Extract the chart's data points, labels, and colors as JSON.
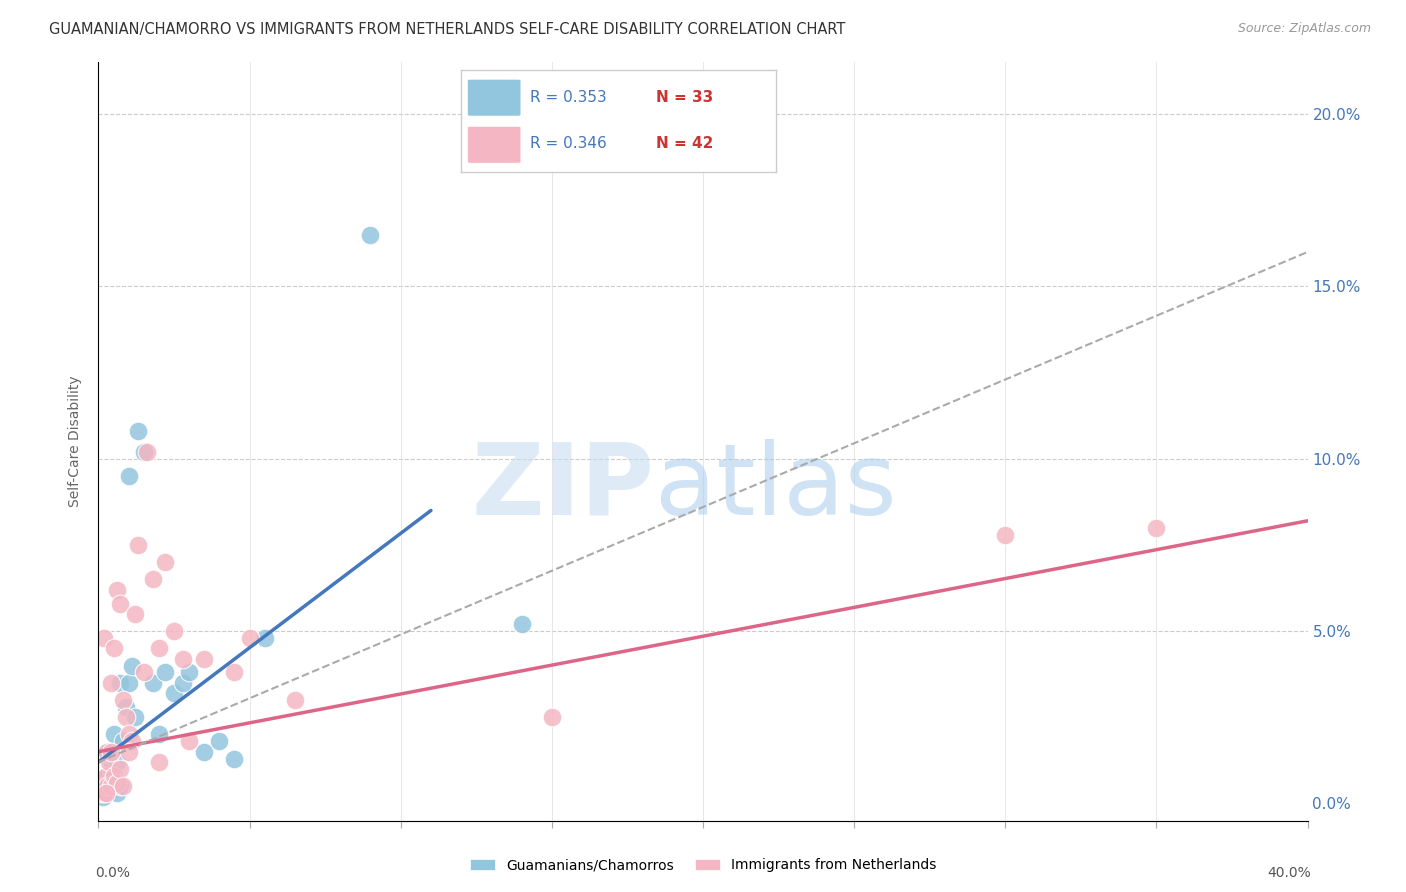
{
  "title": "GUAMANIAN/CHAMORRO VS IMMIGRANTS FROM NETHERLANDS SELF-CARE DISABILITY CORRELATION CHART",
  "source": "Source: ZipAtlas.com",
  "ylabel": "Self-Care Disability",
  "ytick_values": [
    0.0,
    5.0,
    10.0,
    15.0,
    20.0
  ],
  "xlim": [
    0.0,
    40.0
  ],
  "ylim": [
    -0.5,
    21.5
  ],
  "legend_R1": "R = 0.353",
  "legend_N1": "N = 33",
  "legend_R2": "R = 0.346",
  "legend_N2": "N = 42",
  "blue_color": "#92c5de",
  "pink_color": "#f4b6c2",
  "blue_line_color": "#4477bb",
  "pink_line_color": "#dd6688",
  "dashed_line_color": "#aaaaaa",
  "blue_scatter": [
    [
      0.1,
      0.3
    ],
    [
      0.2,
      0.5
    ],
    [
      0.3,
      0.8
    ],
    [
      0.3,
      1.5
    ],
    [
      0.4,
      0.4
    ],
    [
      0.4,
      1.0
    ],
    [
      0.5,
      0.6
    ],
    [
      0.5,
      2.0
    ],
    [
      0.6,
      0.3
    ],
    [
      0.6,
      1.2
    ],
    [
      0.7,
      0.5
    ],
    [
      0.7,
      3.5
    ],
    [
      0.8,
      1.8
    ],
    [
      0.9,
      2.8
    ],
    [
      1.0,
      3.5
    ],
    [
      1.0,
      9.5
    ],
    [
      1.1,
      4.0
    ],
    [
      1.2,
      2.5
    ],
    [
      1.3,
      10.8
    ],
    [
      1.5,
      10.2
    ],
    [
      1.8,
      3.5
    ],
    [
      2.0,
      2.0
    ],
    [
      2.2,
      3.8
    ],
    [
      2.5,
      3.2
    ],
    [
      2.8,
      3.5
    ],
    [
      3.0,
      3.8
    ],
    [
      3.5,
      1.5
    ],
    [
      4.0,
      1.8
    ],
    [
      4.5,
      1.3
    ],
    [
      5.5,
      4.8
    ],
    [
      9.0,
      16.5
    ],
    [
      14.0,
      5.2
    ],
    [
      0.15,
      0.2
    ]
  ],
  "pink_scatter": [
    [
      0.1,
      0.3
    ],
    [
      0.15,
      0.5
    ],
    [
      0.2,
      0.3
    ],
    [
      0.2,
      4.8
    ],
    [
      0.25,
      0.8
    ],
    [
      0.3,
      0.5
    ],
    [
      0.3,
      1.5
    ],
    [
      0.35,
      1.2
    ],
    [
      0.4,
      0.5
    ],
    [
      0.4,
      3.5
    ],
    [
      0.5,
      0.8
    ],
    [
      0.5,
      4.5
    ],
    [
      0.6,
      0.6
    ],
    [
      0.6,
      6.2
    ],
    [
      0.7,
      1.0
    ],
    [
      0.7,
      5.8
    ],
    [
      0.8,
      0.5
    ],
    [
      0.8,
      3.0
    ],
    [
      0.9,
      2.5
    ],
    [
      1.0,
      2.0
    ],
    [
      1.1,
      1.8
    ],
    [
      1.2,
      5.5
    ],
    [
      1.3,
      7.5
    ],
    [
      1.5,
      3.8
    ],
    [
      1.6,
      10.2
    ],
    [
      1.8,
      6.5
    ],
    [
      2.0,
      4.5
    ],
    [
      2.2,
      7.0
    ],
    [
      2.5,
      5.0
    ],
    [
      2.8,
      4.2
    ],
    [
      3.0,
      1.8
    ],
    [
      3.5,
      4.2
    ],
    [
      4.5,
      3.8
    ],
    [
      5.0,
      4.8
    ],
    [
      15.0,
      2.5
    ],
    [
      30.0,
      7.8
    ],
    [
      35.0,
      8.0
    ],
    [
      0.25,
      0.3
    ],
    [
      0.4,
      1.5
    ],
    [
      1.0,
      1.5
    ],
    [
      2.0,
      1.2
    ],
    [
      6.5,
      3.0
    ]
  ],
  "blue_line_x": [
    0.0,
    11.0
  ],
  "blue_line_y": [
    1.2,
    8.5
  ],
  "pink_line_x": [
    0.0,
    40.0
  ],
  "pink_line_y": [
    1.5,
    8.2
  ],
  "dashed_line_x": [
    0.0,
    40.0
  ],
  "dashed_line_y": [
    1.2,
    16.0
  ]
}
